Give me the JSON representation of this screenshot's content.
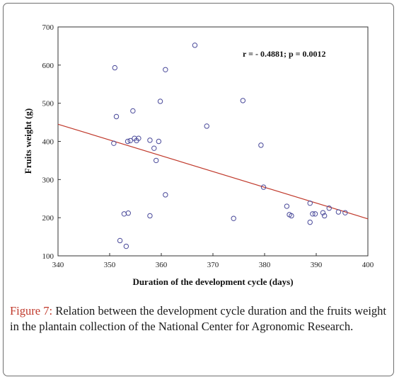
{
  "caption": {
    "label": "Figure 7:",
    "text": " Relation between the development cycle duration and the fruits weight in the plantain collection of the National Center for Agronomic Research."
  },
  "chart_data": {
    "type": "scatter",
    "xlabel": "Duration of the development cycle (days)",
    "ylabel": "Fruits weight (g)",
    "annotation": "r = - 0.4881; p = 0.0012",
    "xlim": [
      340,
      400
    ],
    "ylim": [
      100,
      700
    ],
    "xticks": [
      "340",
      "350",
      "360",
      "370",
      "380",
      "390",
      "400"
    ],
    "yticks": [
      "100",
      "200",
      "300",
      "400",
      "500",
      "600",
      "700"
    ],
    "colors": {
      "points": "#4a4a9a",
      "trend": "#c0392b"
    },
    "points": [
      [
        350.8,
        395
      ],
      [
        351.0,
        593
      ],
      [
        351.3,
        465
      ],
      [
        352.0,
        140
      ],
      [
        352.8,
        210
      ],
      [
        353.2,
        125
      ],
      [
        353.5,
        400
      ],
      [
        353.6,
        212
      ],
      [
        354.0,
        402
      ],
      [
        354.5,
        480
      ],
      [
        354.8,
        408
      ],
      [
        355.2,
        402
      ],
      [
        355.6,
        408
      ],
      [
        357.8,
        205
      ],
      [
        357.8,
        403
      ],
      [
        358.6,
        382
      ],
      [
        359.0,
        350
      ],
      [
        359.5,
        400
      ],
      [
        359.8,
        505
      ],
      [
        360.8,
        260
      ],
      [
        360.8,
        588
      ],
      [
        366.5,
        652
      ],
      [
        368.8,
        440
      ],
      [
        374.0,
        198
      ],
      [
        375.8,
        507
      ],
      [
        379.3,
        390
      ],
      [
        379.8,
        280
      ],
      [
        384.3,
        230
      ],
      [
        384.8,
        208
      ],
      [
        385.2,
        205
      ],
      [
        388.8,
        238
      ],
      [
        388.8,
        188
      ],
      [
        389.3,
        210
      ],
      [
        389.8,
        210
      ],
      [
        391.3,
        213
      ],
      [
        391.6,
        205
      ],
      [
        392.5,
        225
      ],
      [
        394.3,
        215
      ],
      [
        395.6,
        213
      ]
    ],
    "trendline": {
      "x": [
        340,
        400
      ],
      "y": [
        445,
        197
      ]
    }
  }
}
